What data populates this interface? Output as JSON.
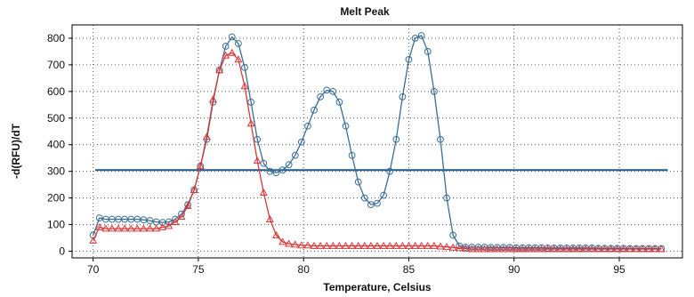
{
  "chart_data": {
    "type": "line",
    "title": "Melt Peak",
    "xlabel": "Temperature, Celsius",
    "ylabel": "-d(RFU)/dT",
    "xlim": [
      69,
      98
    ],
    "ylim": [
      -25,
      850
    ],
    "x_ticks": [
      70,
      75,
      80,
      85,
      90,
      95
    ],
    "y_ticks": [
      0,
      100,
      200,
      300,
      400,
      500,
      600,
      700,
      800
    ],
    "grid": true,
    "legend": "none",
    "threshold": {
      "y": 305,
      "x_start": 70.1,
      "x_end": 97.3,
      "color": "#1f5c8c"
    },
    "series": [
      {
        "color": "#3a6f96",
        "marker": "circle",
        "x": [
          70.0,
          70.3,
          70.6,
          70.9,
          71.2,
          71.5,
          71.8,
          72.1,
          72.4,
          72.7,
          73.0,
          73.3,
          73.6,
          73.9,
          74.2,
          74.5,
          74.8,
          75.1,
          75.4,
          75.7,
          76.0,
          76.3,
          76.6,
          76.9,
          77.2,
          77.5,
          77.8,
          78.1,
          78.4,
          78.7,
          79.0,
          79.3,
          79.6,
          79.9,
          80.2,
          80.5,
          80.8,
          81.1,
          81.4,
          81.7,
          82.0,
          82.3,
          82.6,
          82.9,
          83.2,
          83.5,
          83.8,
          84.1,
          84.4,
          84.7,
          85.0,
          85.3,
          85.6,
          85.9,
          86.2,
          86.5,
          86.8,
          87.1,
          87.4,
          87.7,
          88.0,
          88.3,
          88.6,
          88.9,
          89.2,
          89.5,
          89.8,
          90.1,
          90.4,
          90.7,
          91.0,
          91.3,
          91.6,
          91.9,
          92.2,
          92.5,
          92.8,
          93.1,
          93.4,
          93.7,
          94.0,
          94.3,
          94.6,
          94.9,
          95.2,
          95.5,
          95.8,
          96.1,
          96.4,
          96.7,
          97.0
        ],
        "y": [
          60,
          125,
          120,
          120,
          120,
          120,
          120,
          120,
          118,
          115,
          110,
          108,
          110,
          120,
          140,
          175,
          230,
          320,
          420,
          560,
          680,
          770,
          805,
          780,
          690,
          560,
          420,
          330,
          300,
          295,
          305,
          325,
          360,
          410,
          470,
          530,
          580,
          605,
          600,
          560,
          470,
          360,
          260,
          200,
          175,
          180,
          210,
          300,
          420,
          580,
          720,
          800,
          810,
          750,
          600,
          420,
          200,
          60,
          20,
          15,
          15,
          15,
          15,
          14,
          14,
          14,
          14,
          13,
          13,
          13,
          13,
          13,
          12,
          12,
          12,
          12,
          12,
          12,
          12,
          12,
          11,
          11,
          11,
          11,
          11,
          10,
          10,
          10,
          10,
          10,
          10
        ]
      },
      {
        "color": "#d9383a",
        "marker": "triangle",
        "x": [
          70.0,
          70.3,
          70.6,
          70.9,
          71.2,
          71.5,
          71.8,
          72.1,
          72.4,
          72.7,
          73.0,
          73.3,
          73.6,
          73.9,
          74.2,
          74.5,
          74.8,
          75.1,
          75.4,
          75.7,
          76.0,
          76.3,
          76.6,
          76.9,
          77.2,
          77.5,
          77.8,
          78.1,
          78.4,
          78.7,
          79.0,
          79.3,
          79.6,
          79.9,
          80.2,
          80.5,
          80.8,
          81.1,
          81.4,
          81.7,
          82.0,
          82.3,
          82.6,
          82.9,
          83.2,
          83.5,
          83.8,
          84.1,
          84.4,
          84.7,
          85.0,
          85.3,
          85.6,
          85.9,
          86.2,
          86.5,
          86.8,
          87.1,
          87.4,
          87.7,
          88.0,
          88.3,
          88.6,
          88.9,
          89.2,
          89.5,
          89.8,
          90.1,
          90.4,
          90.7,
          91.0,
          91.3,
          91.6,
          91.9,
          92.2,
          92.5,
          92.8,
          93.1,
          93.4,
          93.7,
          94.0,
          94.3,
          94.6,
          94.9,
          95.2,
          95.5,
          95.8,
          96.1,
          96.4,
          96.7,
          97.0
        ],
        "y": [
          40,
          90,
          85,
          85,
          85,
          85,
          85,
          85,
          85,
          85,
          85,
          90,
          95,
          110,
          130,
          170,
          230,
          320,
          430,
          570,
          680,
          735,
          745,
          720,
          620,
          480,
          340,
          220,
          120,
          60,
          35,
          28,
          25,
          22,
          22,
          20,
          20,
          20,
          20,
          20,
          20,
          20,
          20,
          20,
          20,
          20,
          20,
          20,
          20,
          20,
          20,
          20,
          20,
          20,
          20,
          18,
          16,
          14,
          12,
          10,
          8,
          8,
          8,
          8,
          8,
          8,
          8,
          8,
          8,
          8,
          8,
          8,
          8,
          8,
          8,
          8,
          8,
          8,
          8,
          8,
          8,
          8,
          8,
          8,
          8,
          8,
          8,
          8,
          8,
          8,
          8
        ]
      }
    ]
  }
}
